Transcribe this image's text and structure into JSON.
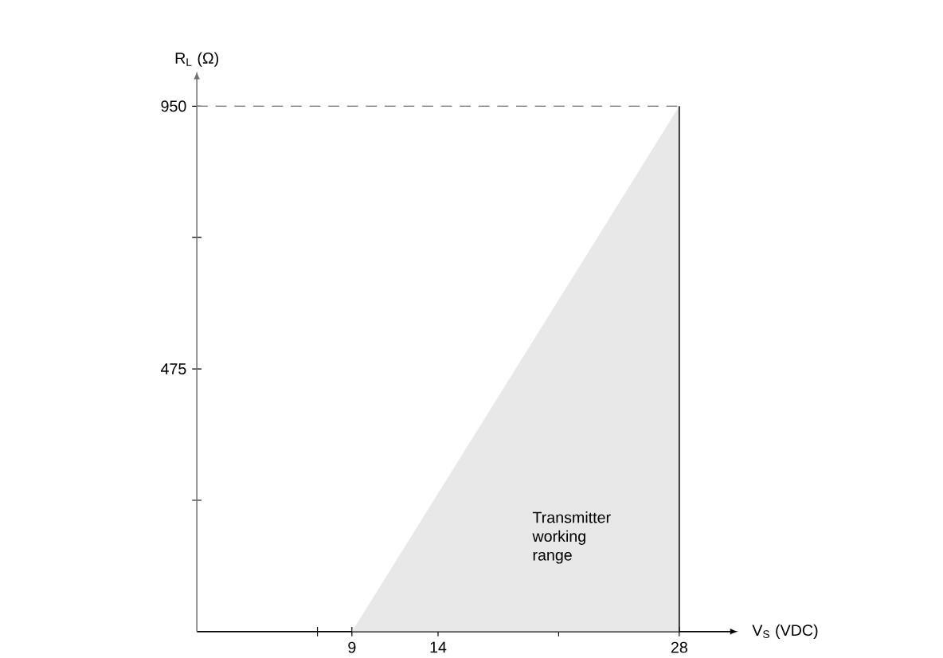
{
  "chart_data": {
    "type": "area",
    "xlabel": "V$_{S}$ (VDC)",
    "ylabel": "R$_{L}$ (Ω)",
    "x": [
      9,
      28
    ],
    "series": [
      {
        "color": "#e8e8e8",
        "values": [
          0,
          950
        ]
      }
    ],
    "xlim": [
      0,
      31
    ],
    "ylim": [
      0,
      1000
    ],
    "xticks": [
      {
        "value": 7,
        "label": null
      },
      9,
      14,
      {
        "value": 21,
        "label": null
      },
      28
    ],
    "yticks": [
      {
        "value": 237.5,
        "label": null
      },
      475,
      {
        "value": 712.5,
        "label": null
      },
      950
    ],
    "ref_lines": [
      {
        "axis": "y",
        "value": 950,
        "color": "#808080",
        "line_style": "dashed"
      },
      {
        "axis": "x",
        "value": 28,
        "color": "#000000",
        "line_style": "solid"
      }
    ],
    "annotations": [
      "Transmitter working range"
    ],
    "grid": false
  }
}
